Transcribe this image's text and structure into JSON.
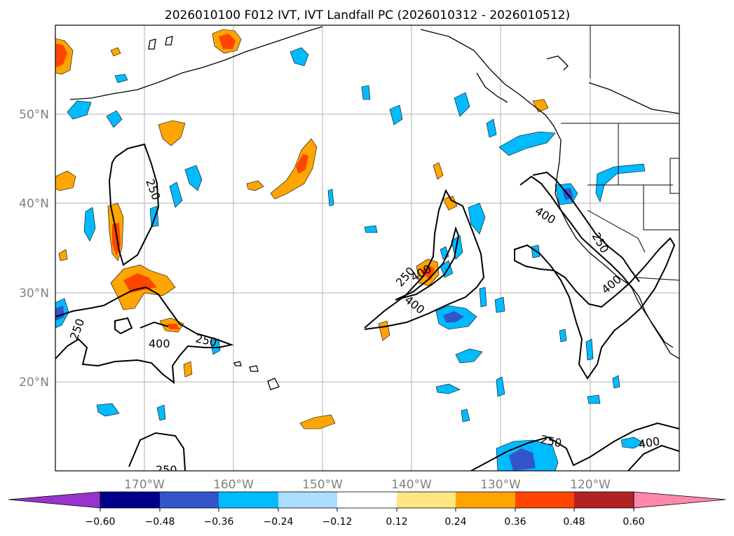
{
  "title": "2026010100 F012 IVT, IVT Landfall PC (2026010312 - 2026010512)",
  "map": {
    "projection": "PlateCarree",
    "lon_range": [
      -180,
      -110
    ],
    "lat_range": [
      10,
      60
    ],
    "lat_labels": [
      "20°N",
      "30°N",
      "40°N",
      "50°N"
    ],
    "lon_labels": [
      "170°W",
      "160°W",
      "150°W",
      "140°W",
      "130°W",
      "120°W"
    ],
    "contour_labels": [
      "250",
      "400",
      "250",
      "400",
      "250",
      "250",
      "400",
      "400",
      "250",
      "400",
      "250",
      "250",
      "400"
    ]
  },
  "colorbar": {
    "ticks": [
      "−0.60",
      "−0.48",
      "−0.36",
      "−0.24",
      "−0.12",
      "0.12",
      "0.24",
      "0.36",
      "0.48",
      "0.60"
    ],
    "colors": [
      "#9933cc",
      "#00008b",
      "#3355cc",
      "#00bbff",
      "#aaddff",
      "#ffffff",
      "#ffe680",
      "#ffa500",
      "#ff4500",
      "#b22222",
      "#ff88aa"
    ]
  },
  "colors": {
    "neg_light": "#aaddff",
    "neg_mid": "#00bbff",
    "neg_dark": "#3355cc",
    "neg_darker": "#00008b",
    "pos_light": "#ffe680",
    "pos_mid": "#ffa500",
    "pos_dark": "#ff4500"
  }
}
